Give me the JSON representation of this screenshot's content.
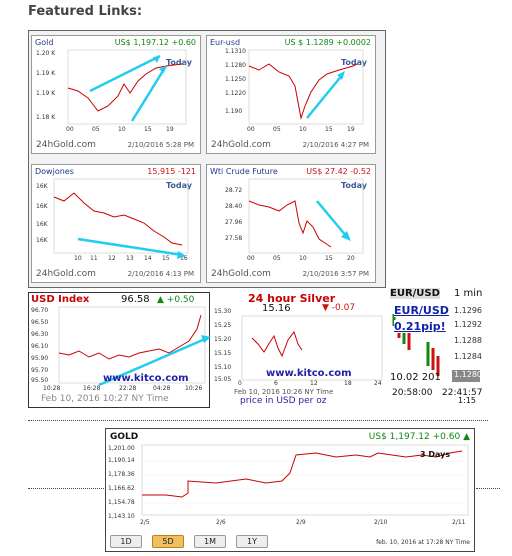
{
  "page": {
    "heading": "Featured Links:"
  },
  "panels": [
    {
      "title": "Gold",
      "quote": "US$ 1,197.12 +0.60",
      "direction": "up",
      "yticks": [
        "1.20 K",
        "1.19 K",
        "1.19 K",
        "1.18 K"
      ],
      "xticks": [
        "00",
        "05",
        "10",
        "15",
        "19"
      ],
      "today": "Today",
      "brand": "24hGold.com",
      "timestamp": "2/10/2016 5:28 PM"
    },
    {
      "title": "Eur-usd",
      "quote": "US $ 1.1289 +0.0002",
      "direction": "up",
      "yticks": [
        "1.1310",
        "1.1280",
        "1.1250",
        "1.1220",
        "1.190"
      ],
      "xticks": [
        "00",
        "05",
        "10",
        "15",
        "19"
      ],
      "today": "Today",
      "brand": "24hGold.com",
      "timestamp": "2/10/2016 4:27 PM"
    },
    {
      "title": "Dowjones",
      "quote": "15,915 -121",
      "direction": "down",
      "yticks": [
        "16K",
        "16K",
        "16K",
        "16K"
      ],
      "xticks": [
        "10",
        "11",
        "12",
        "13",
        "14",
        "15",
        "16"
      ],
      "today": "Today",
      "brand": "24hGold.com",
      "timestamp": "2/10/2016 4:13 PM"
    },
    {
      "title": "Wti Crude Future",
      "quote": "US$ 27.42 -0.52",
      "direction": "down",
      "yticks": [
        "28.72",
        "28.40",
        "27.96",
        "27.58"
      ],
      "xticks": [
        "00",
        "05",
        "10",
        "15",
        "20"
      ],
      "today": "Today",
      "brand": "24hGold.com",
      "timestamp": "2/10/2016 3:57 PM"
    }
  ],
  "usd_index": {
    "title": "USD Index",
    "value": "96.58",
    "change": "+0.50",
    "yticks": [
      "96.70",
      "96.50",
      "96.30",
      "96.10",
      "95.90",
      "95.70",
      "95.50"
    ],
    "xticks": [
      "10:28",
      "16:28",
      "22:28",
      "04:28",
      "10:26"
    ],
    "site": "www.kitco.com",
    "footer": "Feb 10, 2016 10:27 NY Time"
  },
  "silver": {
    "title": "24 hour Silver",
    "value": "15.16",
    "change": "-0.07",
    "yticks": [
      "15.30",
      "15.25",
      "15.20",
      "15.15",
      "15.10",
      "15.05"
    ],
    "xticks": [
      "0",
      "6",
      "12",
      "18",
      "24"
    ],
    "site": "www.kitco.com",
    "footer": "Feb 10, 2016 10:26 NY Time",
    "note": "price in USD per oz"
  },
  "eurusd_widget": {
    "title": "EUR/USD",
    "interval": "1 min",
    "link_text": "EUR/USD",
    "pip_text": "0.21pip!",
    "yticks": [
      "1.1296",
      "1.1292",
      "1.1288",
      "1.1284",
      "1.1280"
    ],
    "date": "10.02 201",
    "time_left": "20:58:00",
    "time_right": "22:41:57",
    "tail": "1:15"
  },
  "gold_large": {
    "title": "GOLD",
    "quote": "US$ 1,197.12 +0.60",
    "yticks": [
      "1,201.00",
      "1,190.14",
      "1,178.36",
      "1,166.62",
      "1,154.78",
      "1,143.10"
    ],
    "xticks": [
      "2/5",
      "2/6",
      "2/9",
      "2/10",
      "2/11"
    ],
    "badge": "3 Days",
    "footer": "feb. 10, 2016 at 17:28 NY Time",
    "buttons": [
      "1D",
      "5D",
      "1M",
      "1Y"
    ],
    "active_button": "5D"
  },
  "colors": {
    "line": "#cc0000",
    "accent_arrow": "#22ccee",
    "kitco_blue": "#2222aa",
    "up": "#118811",
    "down": "#cc1111"
  },
  "chart_data": [
    {
      "type": "line",
      "title": "Gold",
      "x": [
        0,
        2,
        4,
        6,
        8,
        10,
        11,
        12,
        14,
        15,
        17,
        19
      ],
      "y": [
        1185,
        1184,
        1182,
        1178,
        1180,
        1183,
        1186,
        1184,
        1190,
        1194,
        1197,
        1197
      ]
    },
    {
      "type": "line",
      "title": "Eur-usd",
      "x": [
        0,
        2,
        4,
        6,
        8,
        10,
        11,
        12,
        14,
        16,
        18,
        19
      ],
      "y": [
        1.1275,
        1.1272,
        1.1276,
        1.127,
        1.1258,
        1.1205,
        1.122,
        1.1245,
        1.1262,
        1.1275,
        1.1285,
        1.1289
      ]
    },
    {
      "type": "line",
      "title": "Dowjones",
      "x": [
        10,
        11,
        12,
        13,
        14,
        15,
        16
      ],
      "y": [
        16050,
        16010,
        15990,
        16000,
        15960,
        15920,
        15915
      ]
    },
    {
      "type": "line",
      "title": "Wti Crude Future",
      "x": [
        0,
        3,
        6,
        9,
        11,
        12,
        14,
        16,
        18,
        20
      ],
      "y": [
        28.5,
        28.45,
        28.3,
        28.4,
        28.35,
        27.9,
        27.7,
        27.6,
        27.5,
        27.42
      ]
    },
    {
      "type": "line",
      "title": "USD Index",
      "x": [
        "10:28",
        "16:28",
        "22:28",
        "04:28",
        "10:26"
      ],
      "y": [
        95.9,
        96.0,
        96.05,
        96.1,
        96.58
      ]
    },
    {
      "type": "line",
      "title": "24 hour Silver",
      "x": [
        0,
        3,
        6,
        9,
        12
      ],
      "y": [
        15.15,
        15.18,
        15.22,
        15.14,
        15.16
      ]
    },
    {
      "type": "line",
      "title": "GOLD",
      "x": [
        "2/5",
        "2/6",
        "2/9",
        "2/10",
        "2/11"
      ],
      "y": [
        1154.78,
        1157.5,
        1190.14,
        1190.0,
        1197.12
      ]
    }
  ]
}
